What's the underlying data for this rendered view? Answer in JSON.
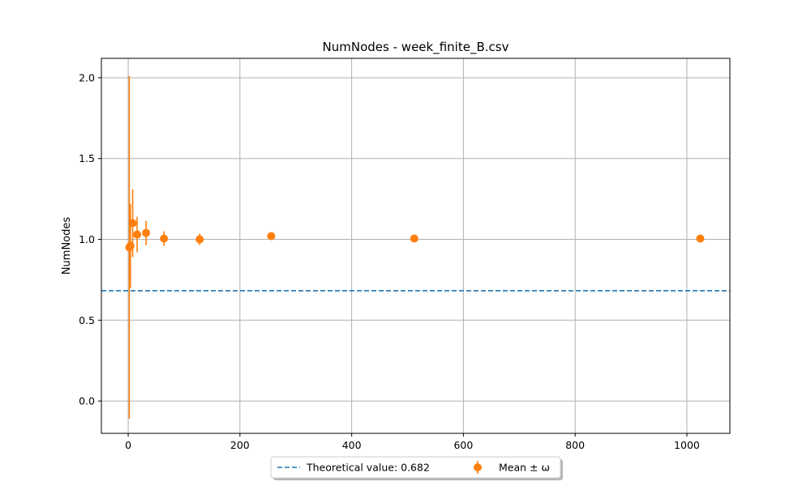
{
  "chart_data": {
    "type": "scatter",
    "title": "NumNodes - week_finite_B.csv",
    "xlabel": "",
    "ylabel": "NumNodes",
    "xlim": [
      -48,
      1077
    ],
    "ylim": [
      -0.2,
      2.12
    ],
    "xticks": [
      0,
      200,
      400,
      600,
      800,
      1000
    ],
    "yticks": [
      0.0,
      0.5,
      1.0,
      1.5,
      2.0
    ],
    "xtick_labels": [
      "0",
      "200",
      "400",
      "600",
      "800",
      "1000"
    ],
    "ytick_labels": [
      "0.0",
      "0.5",
      "1.0",
      "1.5",
      "2.0"
    ],
    "grid": true,
    "legend_position": "bottom-center",
    "theoretical": {
      "label": "Theoretical value: 0.682",
      "value": 0.682,
      "color": "#1f77b4",
      "style": "dashed"
    },
    "series": [
      {
        "name": "Mean ± ω",
        "color": "#ff7f0e",
        "x": [
          2,
          4,
          8,
          16,
          32,
          64,
          128,
          256,
          512,
          1024
        ],
        "y": [
          0.95,
          0.96,
          1.1,
          1.03,
          1.04,
          1.005,
          1.0,
          1.02,
          1.005,
          1.005
        ],
        "err": [
          1.06,
          0.26,
          0.21,
          0.11,
          0.075,
          0.045,
          0.035,
          0.025,
          0.012,
          0.01
        ]
      }
    ]
  }
}
